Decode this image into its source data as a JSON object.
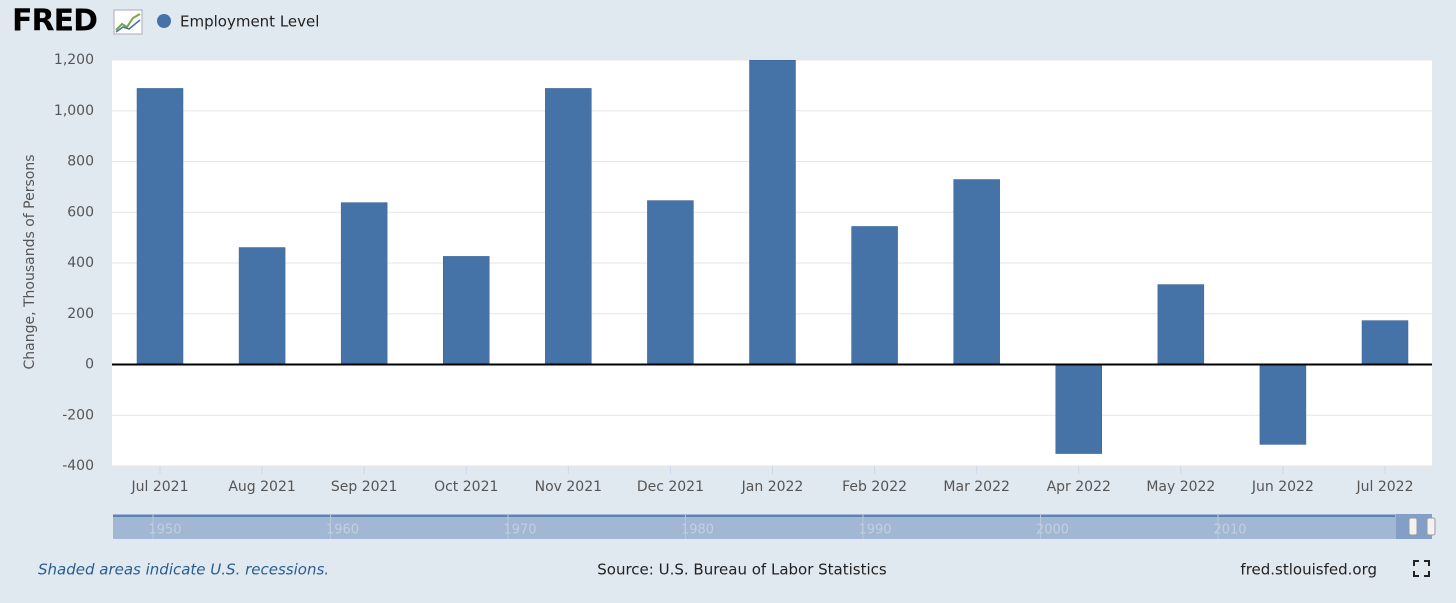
{
  "brand": "FRED",
  "chart_data": {
    "type": "bar",
    "categories": [
      "Jul 2021",
      "Aug 2021",
      "Sep 2021",
      "Oct 2021",
      "Nov 2021",
      "Dec 2021",
      "Jan 2022",
      "Feb 2022",
      "Mar 2022",
      "Apr 2022",
      "May 2022",
      "Jun 2022",
      "Jul 2022"
    ],
    "series": [
      {
        "name": "Employment Level",
        "color": "#4572a7",
        "values": [
          1088,
          461,
          638,
          426,
          1088,
          646,
          1199,
          544,
          729,
          -351,
          315,
          -315,
          173
        ]
      }
    ],
    "y_label": "Change, Thousands of Persons",
    "ylim": [
      -400,
      1200
    ],
    "yticks": [
      -400,
      -200,
      0,
      200,
      400,
      600,
      800,
      {
        "value": 1000,
        "label": "1,000"
      },
      {
        "value": 1200,
        "label": "1,200"
      }
    ],
    "grid": true
  },
  "navigator": {
    "labels": [
      "1950",
      "1960",
      "1970",
      "1980",
      "1990",
      "2000",
      "2010"
    ]
  },
  "footer": {
    "note": "Shaded areas indicate U.S. recessions.",
    "source": "Source: U.S. Bureau of Labor Statistics",
    "site": "fred.stlouisfed.org"
  }
}
